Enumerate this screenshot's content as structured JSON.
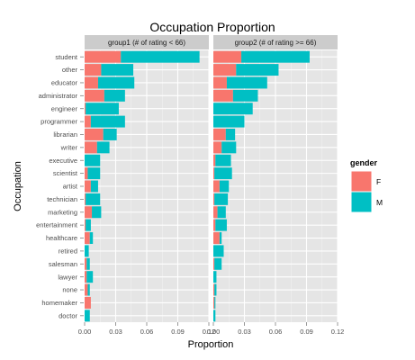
{
  "chart_data": {
    "type": "bar",
    "title": "Occupation Proportion",
    "xlabel": "Proportion",
    "ylabel": "Occupation",
    "xlim": [
      0,
      0.12
    ],
    "x_ticks": [
      "0.00",
      "0.03",
      "0.06",
      "0.09",
      "0.12"
    ],
    "stacked": true,
    "grid": true,
    "legend": {
      "title": "gender",
      "position": "right"
    },
    "series": [
      {
        "name": "F",
        "color": "#F8766D"
      },
      {
        "name": "M",
        "color": "#00BFC4"
      }
    ],
    "categories": [
      "student",
      "other",
      "educator",
      "administrator",
      "engineer",
      "programmer",
      "librarian",
      "writer",
      "executive",
      "scientist",
      "artist",
      "technician",
      "marketing",
      "entertainment",
      "healthcare",
      "retired",
      "salesman",
      "lawyer",
      "none",
      "homemaker",
      "doctor"
    ],
    "panels": [
      {
        "label": "group1 (# of rating < 66)",
        "F": [
          0.035,
          0.016,
          0.013,
          0.019,
          0.001,
          0.006,
          0.018,
          0.012,
          0.0,
          0.003,
          0.006,
          0.001,
          0.007,
          0.001,
          0.005,
          0.0,
          0.002,
          0.002,
          0.003,
          0.006,
          0.0
        ],
        "M": [
          0.076,
          0.031,
          0.035,
          0.02,
          0.032,
          0.033,
          0.013,
          0.012,
          0.015,
          0.012,
          0.007,
          0.014,
          0.009,
          0.005,
          0.003,
          0.004,
          0.003,
          0.006,
          0.002,
          0.0,
          0.005
        ]
      },
      {
        "label": "group2 (# of rating >= 66)",
        "F": [
          0.027,
          0.022,
          0.013,
          0.019,
          0.0,
          0.0,
          0.012,
          0.008,
          0.002,
          0.001,
          0.006,
          0.001,
          0.004,
          0.002,
          0.006,
          0.0,
          0.001,
          0.0,
          0.001,
          0.001,
          0.0
        ],
        "M": [
          0.066,
          0.041,
          0.039,
          0.024,
          0.038,
          0.03,
          0.009,
          0.014,
          0.015,
          0.017,
          0.009,
          0.013,
          0.008,
          0.011,
          0.002,
          0.01,
          0.007,
          0.003,
          0.002,
          0.001,
          0.002
        ]
      }
    ]
  }
}
